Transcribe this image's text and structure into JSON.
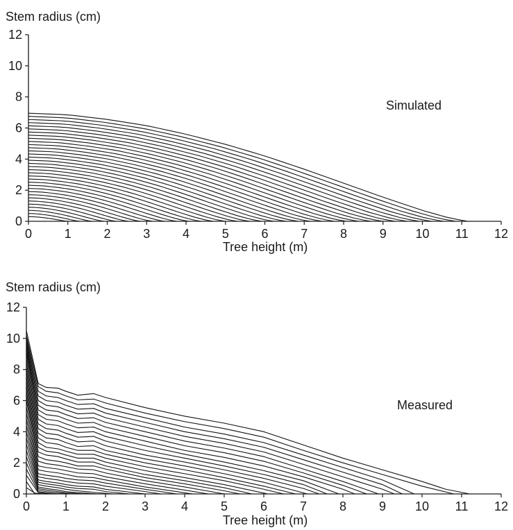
{
  "chart_data": [
    {
      "type": "line",
      "panel": "top",
      "annotation": "Simulated",
      "ylabel": "Stem radius (cm)",
      "xlabel": "Tree height (m)",
      "xlim": [
        0,
        12
      ],
      "ylim": [
        0,
        12
      ],
      "xticks": [
        0,
        1,
        2,
        3,
        4,
        5,
        6,
        7,
        8,
        9,
        10,
        11,
        12
      ],
      "yticks": [
        0,
        2,
        4,
        6,
        8,
        10,
        12
      ],
      "grid": false,
      "legend": "none",
      "family": {
        "description_of_series": "annual stem profiles",
        "count": 34,
        "outer_profile": {
          "x": [
            0,
            1,
            2,
            3,
            4,
            5,
            6,
            7,
            8,
            9,
            10,
            10.7,
            11.15
          ],
          "y": [
            6.95,
            6.85,
            6.55,
            6.15,
            5.6,
            4.95,
            4.2,
            3.35,
            2.45,
            1.55,
            0.7,
            0.2,
            0
          ]
        },
        "inner_radius_at_base": 0.3,
        "inner_height": 1.0
      }
    },
    {
      "type": "line",
      "panel": "bottom",
      "annotation": "Measured",
      "ylabel": "Stem radius (cm)",
      "xlabel": "Tree height (m)",
      "xlim": [
        0,
        12
      ],
      "ylim": [
        0,
        12
      ],
      "xticks": [
        0,
        1,
        2,
        3,
        4,
        5,
        6,
        7,
        8,
        9,
        10,
        11,
        12
      ],
      "yticks": [
        0,
        2,
        4,
        6,
        8,
        10,
        12
      ],
      "grid": false,
      "legend": "none",
      "series": [
        {
          "x": [
            0,
            0.3,
            0.5,
            0.8,
            1.0,
            1.3,
            1.7,
            2.0,
            3,
            4,
            5,
            6,
            7,
            8,
            9,
            10,
            10.6,
            11.2
          ],
          "y": [
            10.5,
            7.1,
            6.85,
            6.8,
            6.6,
            6.35,
            6.45,
            6.2,
            5.55,
            5.0,
            4.55,
            4.0,
            3.15,
            2.3,
            1.55,
            0.8,
            0.3,
            0
          ]
        },
        {
          "x": [
            0,
            0.3,
            0.5,
            0.8,
            1.0,
            1.3,
            1.7,
            2.0,
            3,
            4,
            5,
            6,
            7,
            8,
            9,
            10,
            10.8
          ],
          "y": [
            10.2,
            6.9,
            6.6,
            6.5,
            6.3,
            6.05,
            6.1,
            5.85,
            5.2,
            4.65,
            4.2,
            3.65,
            2.8,
            2.0,
            1.25,
            0.5,
            0
          ]
        },
        {
          "x": [
            0,
            0.3,
            0.5,
            0.8,
            1.0,
            1.3,
            1.7,
            2.0,
            3,
            4,
            5,
            6,
            7,
            8,
            9,
            9.8
          ],
          "y": [
            10.0,
            6.6,
            6.3,
            6.2,
            6.0,
            5.75,
            5.8,
            5.5,
            4.9,
            4.3,
            3.85,
            3.3,
            2.5,
            1.7,
            0.9,
            0
          ]
        },
        {
          "x": [
            0,
            0.3,
            0.5,
            0.8,
            1.0,
            1.3,
            1.7,
            2.0,
            3,
            4,
            5,
            6,
            7,
            8,
            9,
            9.5
          ],
          "y": [
            9.8,
            6.3,
            6.0,
            5.9,
            5.7,
            5.45,
            5.5,
            5.2,
            4.6,
            4.0,
            3.55,
            3.0,
            2.2,
            1.4,
            0.6,
            0
          ]
        },
        {
          "x": [
            0,
            0.3,
            0.5,
            0.8,
            1.0,
            1.3,
            1.7,
            2.0,
            3,
            4,
            5,
            6,
            7,
            8,
            9,
            9.3
          ],
          "y": [
            9.6,
            6.0,
            5.7,
            5.6,
            5.4,
            5.15,
            5.2,
            4.9,
            4.3,
            3.7,
            3.25,
            2.7,
            1.9,
            1.1,
            0.3,
            0
          ]
        },
        {
          "x": [
            0,
            0.3,
            0.5,
            0.8,
            1.0,
            1.3,
            1.7,
            2.0,
            3,
            4,
            5,
            6,
            7,
            8,
            8.9
          ],
          "y": [
            9.4,
            5.7,
            5.4,
            5.3,
            5.1,
            4.85,
            4.9,
            4.6,
            4.0,
            3.4,
            2.95,
            2.4,
            1.6,
            0.8,
            0
          ]
        },
        {
          "x": [
            0,
            0.3,
            0.5,
            0.8,
            1.0,
            1.3,
            1.7,
            2.0,
            3,
            4,
            5,
            6,
            7,
            8,
            8.6
          ],
          "y": [
            9.2,
            5.4,
            5.1,
            5.0,
            4.8,
            4.55,
            4.6,
            4.3,
            3.7,
            3.1,
            2.65,
            2.1,
            1.35,
            0.55,
            0
          ]
        },
        {
          "x": [
            0,
            0.3,
            0.5,
            0.8,
            1.0,
            1.3,
            1.7,
            2.0,
            3,
            4,
            5,
            6,
            7,
            8,
            8.3
          ],
          "y": [
            9.0,
            5.1,
            4.8,
            4.7,
            4.5,
            4.25,
            4.3,
            4.0,
            3.4,
            2.8,
            2.35,
            1.8,
            1.1,
            0.3,
            0
          ]
        },
        {
          "x": [
            0,
            0.3,
            0.5,
            0.8,
            1.0,
            1.3,
            1.7,
            2.0,
            3,
            4,
            5,
            6,
            7,
            7.9
          ],
          "y": [
            8.7,
            4.8,
            4.5,
            4.4,
            4.2,
            3.95,
            4.0,
            3.7,
            3.1,
            2.55,
            2.05,
            1.5,
            0.85,
            0
          ]
        },
        {
          "x": [
            0,
            0.3,
            0.5,
            0.8,
            1.0,
            1.3,
            1.7,
            2.0,
            3,
            4,
            5,
            6,
            7,
            7.6
          ],
          "y": [
            8.4,
            4.5,
            4.2,
            4.1,
            3.9,
            3.65,
            3.7,
            3.4,
            2.8,
            2.3,
            1.8,
            1.25,
            0.6,
            0
          ]
        },
        {
          "x": [
            0,
            0.3,
            0.5,
            0.8,
            1.0,
            1.3,
            1.7,
            2.0,
            3,
            4,
            5,
            6,
            7,
            7.4
          ],
          "y": [
            8.1,
            4.2,
            3.9,
            3.8,
            3.6,
            3.35,
            3.4,
            3.1,
            2.5,
            2.05,
            1.55,
            1.0,
            0.35,
            0
          ]
        },
        {
          "x": [
            0,
            0.3,
            0.5,
            0.8,
            1.0,
            1.3,
            1.7,
            2.0,
            3,
            4,
            5,
            6,
            7.1
          ],
          "y": [
            7.8,
            3.9,
            3.6,
            3.5,
            3.3,
            3.05,
            3.1,
            2.8,
            2.25,
            1.8,
            1.3,
            0.75,
            0
          ]
        },
        {
          "x": [
            0,
            0.3,
            0.5,
            0.8,
            1.0,
            1.3,
            1.7,
            2.0,
            3,
            4,
            5,
            6,
            6.8
          ],
          "y": [
            7.5,
            3.6,
            3.3,
            3.2,
            3.0,
            2.8,
            2.8,
            2.55,
            2.0,
            1.55,
            1.05,
            0.5,
            0
          ]
        },
        {
          "x": [
            0,
            0.3,
            0.5,
            0.8,
            1.0,
            1.3,
            1.7,
            2.0,
            3,
            4,
            5,
            6,
            6.5
          ],
          "y": [
            7.2,
            3.3,
            3.0,
            2.9,
            2.75,
            2.55,
            2.55,
            2.3,
            1.75,
            1.3,
            0.85,
            0.3,
            0
          ]
        },
        {
          "x": [
            0,
            0.3,
            0.5,
            0.8,
            1.0,
            1.3,
            1.7,
            2.0,
            3,
            4,
            5,
            6.1
          ],
          "y": [
            6.9,
            3.0,
            2.75,
            2.65,
            2.5,
            2.3,
            2.3,
            2.05,
            1.5,
            1.05,
            0.6,
            0
          ]
        },
        {
          "x": [
            0,
            0.3,
            0.5,
            0.8,
            1.0,
            1.3,
            1.7,
            2.0,
            3,
            4,
            5,
            5.7
          ],
          "y": [
            6.6,
            2.7,
            2.5,
            2.4,
            2.25,
            2.05,
            2.05,
            1.8,
            1.25,
            0.85,
            0.4,
            0
          ]
        },
        {
          "x": [
            0,
            0.3,
            0.5,
            0.8,
            1.0,
            1.3,
            1.7,
            2.0,
            3,
            4,
            5,
            5.4
          ],
          "y": [
            6.3,
            2.4,
            2.2,
            2.1,
            2.0,
            1.8,
            1.8,
            1.6,
            1.05,
            0.65,
            0.2,
            0
          ]
        },
        {
          "x": [
            0,
            0.3,
            0.5,
            0.8,
            1.0,
            1.3,
            1.7,
            2.0,
            3,
            4,
            5.0
          ],
          "y": [
            6.0,
            2.1,
            1.95,
            1.85,
            1.75,
            1.6,
            1.55,
            1.35,
            0.85,
            0.45,
            0
          ]
        },
        {
          "x": [
            0,
            0.3,
            0.5,
            0.8,
            1.0,
            1.3,
            1.7,
            2.0,
            3,
            4,
            4.6
          ],
          "y": [
            5.6,
            1.8,
            1.7,
            1.6,
            1.5,
            1.35,
            1.3,
            1.1,
            0.65,
            0.25,
            0
          ]
        },
        {
          "x": [
            0,
            0.3,
            0.5,
            0.8,
            1.0,
            1.3,
            1.7,
            2.0,
            3,
            4.2
          ],
          "y": [
            5.2,
            1.55,
            1.45,
            1.35,
            1.25,
            1.1,
            1.05,
            0.9,
            0.45,
            0
          ]
        },
        {
          "x": [
            0,
            0.3,
            0.5,
            0.8,
            1.0,
            1.3,
            1.7,
            2.0,
            3,
            3.8
          ],
          "y": [
            4.8,
            1.3,
            1.2,
            1.1,
            1.0,
            0.9,
            0.85,
            0.7,
            0.3,
            0
          ]
        },
        {
          "x": [
            0,
            0.3,
            0.5,
            0.8,
            1.0,
            1.3,
            1.7,
            2.0,
            3,
            3.4
          ],
          "y": [
            4.4,
            1.1,
            1.0,
            0.9,
            0.8,
            0.7,
            0.65,
            0.5,
            0.15,
            0
          ]
        },
        {
          "x": [
            0,
            0.3,
            0.5,
            0.8,
            1.0,
            1.3,
            1.7,
            2.0,
            3.0
          ],
          "y": [
            4.0,
            0.9,
            0.8,
            0.7,
            0.6,
            0.5,
            0.45,
            0.3,
            0
          ]
        },
        {
          "x": [
            0,
            0.3,
            0.5,
            0.8,
            1.0,
            1.3,
            1.7,
            2.0,
            2.6
          ],
          "y": [
            3.6,
            0.75,
            0.65,
            0.55,
            0.45,
            0.35,
            0.3,
            0.15,
            0
          ]
        },
        {
          "x": [
            0,
            0.3,
            0.5,
            0.8,
            1.0,
            1.3,
            1.7,
            2.2
          ],
          "y": [
            3.2,
            0.6,
            0.5,
            0.4,
            0.3,
            0.2,
            0.1,
            0
          ]
        },
        {
          "x": [
            0,
            0.3,
            0.5,
            0.8,
            1.0,
            1.3,
            1.8
          ],
          "y": [
            2.8,
            0.45,
            0.35,
            0.25,
            0.15,
            0.08,
            0
          ]
        },
        {
          "x": [
            0,
            0.3,
            0.5,
            0.8,
            1.0,
            1.4
          ],
          "y": [
            2.4,
            0.35,
            0.25,
            0.15,
            0.08,
            0
          ]
        },
        {
          "x": [
            0,
            0.3,
            0.5,
            0.8,
            1.1
          ],
          "y": [
            2.0,
            0.25,
            0.15,
            0.07,
            0
          ]
        },
        {
          "x": [
            0,
            0.3,
            0.5,
            0.8
          ],
          "y": [
            1.6,
            0.15,
            0.07,
            0
          ]
        },
        {
          "x": [
            0,
            0.3,
            0.6
          ],
          "y": [
            1.2,
            0.08,
            0
          ]
        },
        {
          "x": [
            0,
            0.2,
            0.4
          ],
          "y": [
            0.8,
            0.05,
            0
          ]
        },
        {
          "x": [
            0,
            0.25
          ],
          "y": [
            0.4,
            0
          ]
        }
      ]
    }
  ]
}
